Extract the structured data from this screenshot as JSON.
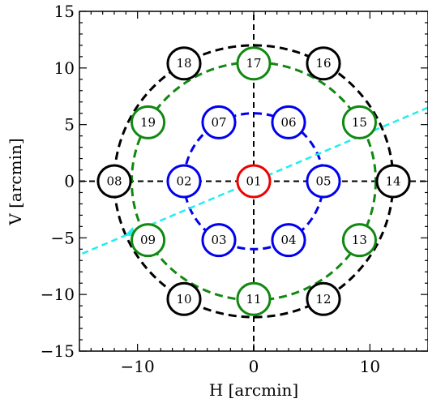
{
  "chart_data": {
    "type": "scatter",
    "xlabel": "H [arcmin]",
    "ylabel": "V [arcmin]",
    "xlim": [
      -15,
      15
    ],
    "ylim": [
      -15,
      15
    ],
    "x_ticks": [
      {
        "value": -10,
        "label": "−10"
      },
      {
        "value": 0,
        "label": "0"
      },
      {
        "value": 10,
        "label": "10"
      }
    ],
    "y_ticks": [
      {
        "value": -15,
        "label": "−15"
      },
      {
        "value": -10,
        "label": "−10"
      },
      {
        "value": -5,
        "label": "−5"
      },
      {
        "value": 0,
        "label": "0"
      },
      {
        "value": 5,
        "label": "5"
      },
      {
        "value": 10,
        "label": "10"
      },
      {
        "value": 15,
        "label": "15"
      }
    ],
    "guide_circles": [
      {
        "radius": 6,
        "color": "#0000ee"
      },
      {
        "radius": 10.5,
        "color": "#118811"
      },
      {
        "radius": 12,
        "color": "#000000"
      }
    ],
    "crosshair_color": "#000000",
    "scan_line": {
      "from": [
        15,
        6.5
      ],
      "to": [
        -15,
        -6.5
      ],
      "color": "#22eeee"
    },
    "beam_radius": 1.4,
    "beams": [
      {
        "label": "01",
        "x": 0,
        "y": 0,
        "color": "#ee0000"
      },
      {
        "label": "02",
        "x": -6,
        "y": 0,
        "color": "#0000ee"
      },
      {
        "label": "03",
        "x": -3,
        "y": -5.2,
        "color": "#0000ee"
      },
      {
        "label": "04",
        "x": 3,
        "y": -5.2,
        "color": "#0000ee"
      },
      {
        "label": "05",
        "x": 6,
        "y": 0,
        "color": "#0000ee"
      },
      {
        "label": "06",
        "x": 3,
        "y": 5.2,
        "color": "#0000ee"
      },
      {
        "label": "07",
        "x": -3,
        "y": 5.2,
        "color": "#0000ee"
      },
      {
        "label": "08",
        "x": -12,
        "y": 0,
        "color": "#000000"
      },
      {
        "label": "09",
        "x": -9.1,
        "y": -5.2,
        "color": "#118811"
      },
      {
        "label": "10",
        "x": -6,
        "y": -10.4,
        "color": "#000000"
      },
      {
        "label": "11",
        "x": 0,
        "y": -10.4,
        "color": "#118811"
      },
      {
        "label": "12",
        "x": 6,
        "y": -10.4,
        "color": "#000000"
      },
      {
        "label": "13",
        "x": 9.1,
        "y": -5.2,
        "color": "#118811"
      },
      {
        "label": "14",
        "x": 12,
        "y": 0,
        "color": "#000000"
      },
      {
        "label": "15",
        "x": 9.1,
        "y": 5.2,
        "color": "#118811"
      },
      {
        "label": "16",
        "x": 6,
        "y": 10.4,
        "color": "#000000"
      },
      {
        "label": "17",
        "x": 0,
        "y": 10.4,
        "color": "#118811"
      },
      {
        "label": "18",
        "x": -6,
        "y": 10.4,
        "color": "#000000"
      },
      {
        "label": "19",
        "x": -9.1,
        "y": 5.2,
        "color": "#118811"
      }
    ]
  }
}
